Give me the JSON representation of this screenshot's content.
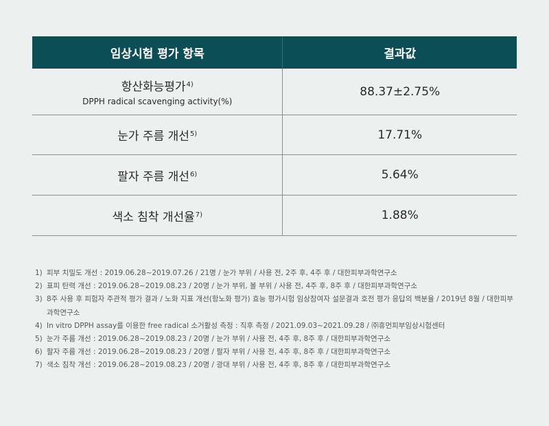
{
  "table": {
    "headers": [
      "임상시험 평가 항목",
      "결과값"
    ],
    "rows": [
      {
        "item": "항산화능평가",
        "ref": "4)",
        "subtitle": "DPPH radical scavenging activity(%)",
        "value": "88.37±2.75%"
      },
      {
        "item": "눈가 주름 개선",
        "ref": "5)",
        "value": "17.71%"
      },
      {
        "item": "팔자 주름 개선",
        "ref": "6)",
        "value": "5.64%"
      },
      {
        "item": "색소 침착 개선율",
        "ref": "7)",
        "value": "1.88%"
      }
    ]
  },
  "footnotes": [
    {
      "num": "1)",
      "text": "피부 치밀도 개선 : 2019.06.28~2019.07.26 / 21명 / 눈가 부위 / 사용 전, 2주 후, 4주 후 / 대한피부과학연구소"
    },
    {
      "num": "2)",
      "text": "표피 탄력 개선 : 2019.06.28~2019.08.23 / 20명 / 눈가 부위, 볼 부위 / 사용 전, 4주 후, 8주 후 / 대한피부과학연구소"
    },
    {
      "num": "3)",
      "text": "8주 사용 후 피험자 주관적 평가 결과 / 노화 지표 개선(항노화 평가) 효능 평가시험 임상참여자 설문결과 호전 평가 응답의 백분율 / 2019년 8월 / 대한피부과학연구소"
    },
    {
      "num": "4)",
      "text": "In vitro DPPH assay를 이용한 free radical 소거활성 측정 : 직후 측정 / 2021.09.03~2021.09.28 / ㈜휴먼피부임상시험센터"
    },
    {
      "num": "5)",
      "text": "눈가 주름 개선 : 2019.06.28~2019.08.23 / 20명 / 눈가 부위 / 사용 전, 4주 후, 8주 후 / 대한피부과학연구소"
    },
    {
      "num": "6)",
      "text": "팔자 주름 개선 : 2019.06.28~2019.08.23 / 20명 / 팔자 부위 / 사용 전, 4주 후, 8주 후 / 대한피부과학연구소"
    },
    {
      "num": "7)",
      "text": "색소 침착 개선 : 2019.06.28~2019.08.23 / 20명 / 광대 부위 / 사용 전, 4주 후, 8주 후 / 대한피부과학연구소"
    }
  ]
}
